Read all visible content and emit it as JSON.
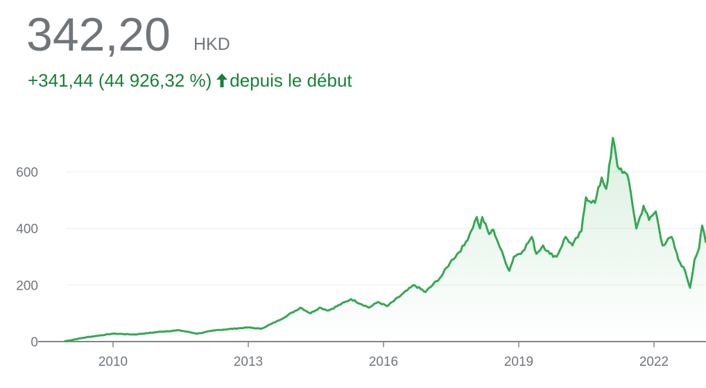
{
  "header": {
    "price": "342,20",
    "currency": "HKD",
    "change": "+341,44 (44 926,32 %)",
    "change_icon": "arrow-up-icon",
    "change_suffix": "depuis le début"
  },
  "colors": {
    "line": "#34a853",
    "change_text": "#188038",
    "price_text": "#70757a",
    "grid": "#f1f3f4",
    "axis": "#80868b"
  },
  "chart_data": {
    "type": "area",
    "title": "",
    "xlabel": "",
    "ylabel": "",
    "xlim": [
      2008.92,
      2023.15
    ],
    "ylim": [
      0,
      720
    ],
    "grid": true,
    "yticks": [
      0,
      200,
      400,
      600
    ],
    "ytick_labels": [
      "0",
      "200",
      "400",
      "600"
    ],
    "xticks": [
      2010,
      2013,
      2016,
      2019,
      2022
    ],
    "xtick_labels": [
      "2010",
      "2013",
      "2016",
      "2019",
      "2022"
    ],
    "x": [
      2008.92,
      2009.4,
      2010.0,
      2010.47,
      2011.07,
      2011.47,
      2011.87,
      2012.27,
      2013.0,
      2013.28,
      2013.68,
      2014.16,
      2014.38,
      2014.58,
      2014.78,
      2015.28,
      2015.68,
      2015.88,
      2016.08,
      2016.68,
      2016.93,
      2017.28,
      2017.48,
      2017.79,
      2017.94,
      2018.07,
      2018.14,
      2018.19,
      2018.34,
      2018.44,
      2018.59,
      2018.79,
      2018.89,
      2019.09,
      2019.29,
      2019.39,
      2019.54,
      2019.69,
      2019.84,
      2020.04,
      2020.19,
      2020.39,
      2020.49,
      2020.69,
      2020.84,
      2020.94,
      2021.04,
      2021.09,
      2021.19,
      2021.34,
      2021.44,
      2021.61,
      2021.77,
      2021.89,
      2022.04,
      2022.19,
      2022.39,
      2022.54,
      2022.69,
      2022.8,
      2022.9,
      2023.0,
      2023.07,
      2023.15
    ],
    "y": [
      1,
      15,
      28,
      25,
      35,
      40,
      28,
      40,
      50,
      45,
      75,
      120,
      100,
      120,
      110,
      150,
      120,
      140,
      125,
      200,
      175,
      230,
      280,
      340,
      390,
      440,
      400,
      440,
      380,
      395,
      330,
      250,
      300,
      320,
      370,
      310,
      340,
      310,
      300,
      370,
      340,
      390,
      510,
      490,
      580,
      540,
      650,
      720,
      620,
      600,
      570,
      400,
      480,
      430,
      460,
      340,
      370,
      290,
      250,
      190,
      290,
      330,
      410,
      350
    ]
  }
}
